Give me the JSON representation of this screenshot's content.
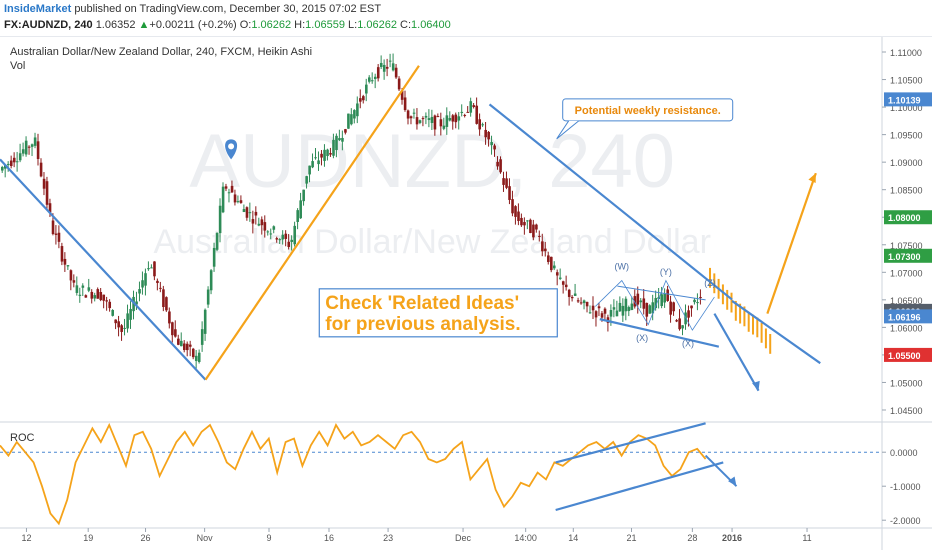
{
  "header": {
    "author": "InsideMarket",
    "published_text": "published on TradingView.com, December 30, 2015 07:02 EST",
    "symbol": "FX:AUDNZD, 240",
    "price": "1.06352",
    "arrow": "▲",
    "change": "+0.00211 (+0.2%)",
    "o_label": "O:",
    "o_value": "1.06262",
    "h_label": "H:",
    "h_value": "1.06559",
    "l_label": "L:",
    "l_value": "1.06262",
    "c_label": "C:",
    "c_value": "1.06400"
  },
  "chart_data": [
    {
      "type": "candlestick",
      "title": "Australian Dollar/New Zealand Dollar, 240, FXCM, Heikin Ashi",
      "subtitle": "Vol",
      "watermark_main": "AUDNZD, 240",
      "watermark_sub": "Australian Dollar/New Zealand Dollar",
      "ylim": [
        1.043,
        1.112
      ],
      "y_ticks": [
        "1.04500",
        "1.05000",
        "1.05500",
        "1.06000",
        "1.06500",
        "1.07000",
        "1.07500",
        "1.08000",
        "1.08500",
        "1.09000",
        "1.09500",
        "1.10000",
        "1.10500",
        "1.11000"
      ],
      "price_path": [
        [
          0,
          1.0885
        ],
        [
          0.04,
          1.094
        ],
        [
          0.06,
          1.078
        ],
        [
          0.085,
          1.067
        ],
        [
          0.115,
          1.066
        ],
        [
          0.14,
          1.059
        ],
        [
          0.17,
          1.072
        ],
        [
          0.2,
          1.058
        ],
        [
          0.225,
          1.054
        ],
        [
          0.255,
          1.086
        ],
        [
          0.28,
          1.081
        ],
        [
          0.33,
          1.075
        ],
        [
          0.35,
          1.089
        ],
        [
          0.38,
          1.093
        ],
        [
          0.425,
          1.106
        ],
        [
          0.445,
          1.108
        ],
        [
          0.465,
          1.098
        ],
        [
          0.5,
          1.097
        ],
        [
          0.535,
          1.1
        ],
        [
          0.56,
          1.092
        ],
        [
          0.585,
          1.08
        ],
        [
          0.61,
          1.077
        ],
        [
          0.635,
          1.068
        ],
        [
          0.66,
          1.064
        ],
        [
          0.69,
          1.062
        ],
        [
          0.72,
          1.065
        ],
        [
          0.735,
          1.063
        ],
        [
          0.755,
          1.066
        ],
        [
          0.77,
          1.06
        ],
        [
          0.795,
          1.066
        ]
      ],
      "price_labels": [
        {
          "value": "1.10139",
          "price": 1.1014,
          "color": "#4a87d0"
        },
        {
          "value": "1.08000",
          "price": 1.08,
          "color": "#2f9e44"
        },
        {
          "value": "1.07300",
          "price": 1.073,
          "color": "#2f9e44"
        },
        {
          "value": "1.06300",
          "price": 1.063,
          "color": "#555e6a"
        },
        {
          "value": "1.06196",
          "price": 1.062,
          "color": "#4a87d0"
        },
        {
          "value": "1.05500",
          "price": 1.055,
          "color": "#e03131"
        }
      ],
      "projection_bars": [
        1.069,
        1.068,
        1.067,
        1.066,
        1.065,
        1.0645,
        1.063,
        1.0625,
        1.062,
        1.061,
        1.0605,
        1.06,
        1.059,
        1.058,
        1.057
      ],
      "annotations": {
        "callout": "Potential weekly resistance.",
        "related_ideas": [
          "Check 'Related Ideas'",
          "for previous analysis."
        ],
        "wave_labels": [
          "(W)",
          "(X)",
          "(Y)",
          "(X)",
          "(Z)"
        ],
        "drawing_colors": {
          "trend": "#4a87d0",
          "orange": "#f5a31a",
          "callout_text": "#e8890c"
        }
      }
    },
    {
      "type": "line",
      "title": "ROC",
      "ylim": [
        -2.2,
        0.8
      ],
      "y_ticks": [
        "0.0000",
        "-1.0000",
        "-2.0000"
      ],
      "series": [
        {
          "values": [
            0.2,
            -0.1,
            0.3,
            0.0,
            -0.3,
            -1.0,
            -1.8,
            -2.1,
            -1.4,
            -0.3,
            0.2,
            0.7,
            0.3,
            0.8,
            0.2,
            -0.4,
            0.5,
            0.6,
            0.1,
            -0.7,
            -0.2,
            0.3,
            0.6,
            0.2,
            0.6,
            0.8,
            0.3,
            -0.3,
            -0.5,
            0.1,
            0.6,
            0.1,
            0.4,
            -0.6,
            0.3,
            0.4,
            -0.4,
            0.2,
            0.6,
            0.2,
            0.8,
            0.4,
            0.6,
            0.2,
            0.3,
            0.5,
            0.3,
            0.1,
            0.5,
            0.6,
            0.3,
            -0.2,
            -0.3,
            -0.2,
            0.1,
            0.3,
            -0.8,
            -0.5,
            -0.2,
            -1.1,
            -1.6,
            -1.3,
            -0.9,
            -1.0,
            -0.6,
            -0.8,
            -0.3,
            -0.4,
            -0.2,
            0.0,
            0.2,
            0.3,
            0.1,
            0.3,
            -0.1,
            0.3,
            0.5,
            0.4,
            0.2,
            -0.4,
            -0.7,
            -0.5,
            0.0,
            0.1,
            -0.2
          ]
        }
      ]
    }
  ],
  "x_axis": {
    "labels": [
      {
        "text": "12",
        "pos": 0.03
      },
      {
        "text": "19",
        "pos": 0.1
      },
      {
        "text": "26",
        "pos": 0.165
      },
      {
        "text": "Nov",
        "pos": 0.232
      },
      {
        "text": "9",
        "pos": 0.305
      },
      {
        "text": "16",
        "pos": 0.373
      },
      {
        "text": "23",
        "pos": 0.44
      },
      {
        "text": "Dec",
        "pos": 0.525
      },
      {
        "text": "14:00",
        "pos": 0.596
      },
      {
        "text": "14",
        "pos": 0.65
      },
      {
        "text": "21",
        "pos": 0.716
      },
      {
        "text": "28",
        "pos": 0.785
      },
      {
        "text": "2016",
        "pos": 0.83
      },
      {
        "text": "11",
        "pos": 0.915
      }
    ]
  }
}
